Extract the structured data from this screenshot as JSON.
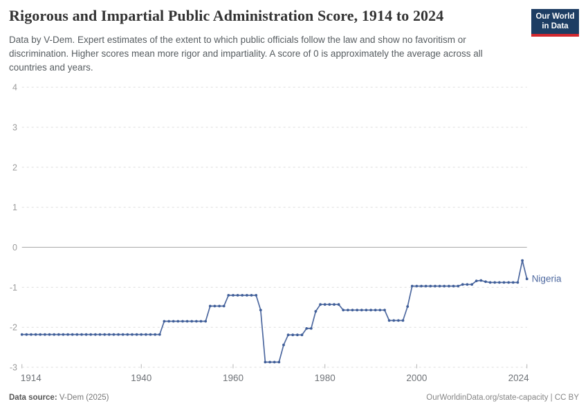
{
  "header": {
    "title": "Rigorous and Impartial Public Administration Score, 1914 to 2024",
    "subtitle": "Data by V-Dem. Expert estimates of the extent to which public officials follow the law and show no favoritism or discrimination. Higher scores mean more rigor and impartiality. A score of 0 is approximately the average across all countries and years.",
    "logo_line1": "Our World",
    "logo_line2": "in Data"
  },
  "footer": {
    "source_label": "Data source:",
    "source_value": "V-Dem (2025)",
    "credit": "OurWorldinData.org/state-capacity | CC BY"
  },
  "colors": {
    "line": "#4d689f",
    "point": "#3f5e99",
    "entity_label": "#4d689f",
    "grid_dashed": "#dedede",
    "zero_line": "#a8a8a8",
    "y_tick_label": "#9b9b9b",
    "x_tick_label": "#6f7378",
    "tick_mark": "#b5b5b5",
    "logo_bg": "#1d3d63",
    "logo_stripe": "#d2282e"
  },
  "chart_data": {
    "type": "line",
    "title": "Rigorous and Impartial Public Administration Score, 1914 to 2024",
    "xlabel": "",
    "ylabel": "",
    "x_start": 1914,
    "x_end": 2024,
    "xlim": [
      1914,
      2024
    ],
    "ylim": [
      -3,
      4
    ],
    "xticks": [
      1914,
      1940,
      1960,
      1980,
      2000,
      2024
    ],
    "yticks": [
      4,
      3,
      2,
      1,
      0,
      -1,
      -2,
      -3
    ],
    "grid": "horizontal-dashed",
    "zero_line": true,
    "legend": "end-of-line-label",
    "series": [
      {
        "name": "Nigeria",
        "values": [
          -2.18,
          -2.18,
          -2.18,
          -2.18,
          -2.18,
          -2.18,
          -2.18,
          -2.18,
          -2.18,
          -2.18,
          -2.18,
          -2.18,
          -2.18,
          -2.18,
          -2.18,
          -2.18,
          -2.18,
          -2.18,
          -2.18,
          -2.18,
          -2.18,
          -2.18,
          -2.18,
          -2.18,
          -2.18,
          -2.18,
          -2.18,
          -2.18,
          -2.18,
          -2.18,
          -2.18,
          -1.85,
          -1.85,
          -1.85,
          -1.85,
          -1.85,
          -1.85,
          -1.85,
          -1.85,
          -1.85,
          -1.85,
          -1.47,
          -1.47,
          -1.47,
          -1.47,
          -1.2,
          -1.2,
          -1.2,
          -1.2,
          -1.2,
          -1.2,
          -1.2,
          -1.57,
          -2.87,
          -2.87,
          -2.87,
          -2.87,
          -2.44,
          -2.19,
          -2.19,
          -2.19,
          -2.19,
          -2.03,
          -2.03,
          -1.6,
          -1.43,
          -1.43,
          -1.43,
          -1.43,
          -1.43,
          -1.57,
          -1.57,
          -1.57,
          -1.57,
          -1.57,
          -1.57,
          -1.57,
          -1.57,
          -1.57,
          -1.57,
          -1.83,
          -1.83,
          -1.83,
          -1.83,
          -1.48,
          -0.97,
          -0.97,
          -0.97,
          -0.97,
          -0.97,
          -0.97,
          -0.97,
          -0.97,
          -0.97,
          -0.97,
          -0.97,
          -0.93,
          -0.93,
          -0.93,
          -0.84,
          -0.83,
          -0.86,
          -0.88,
          -0.88,
          -0.88,
          -0.88,
          -0.88,
          -0.88,
          -0.88,
          -0.33,
          -0.79
        ]
      }
    ]
  }
}
